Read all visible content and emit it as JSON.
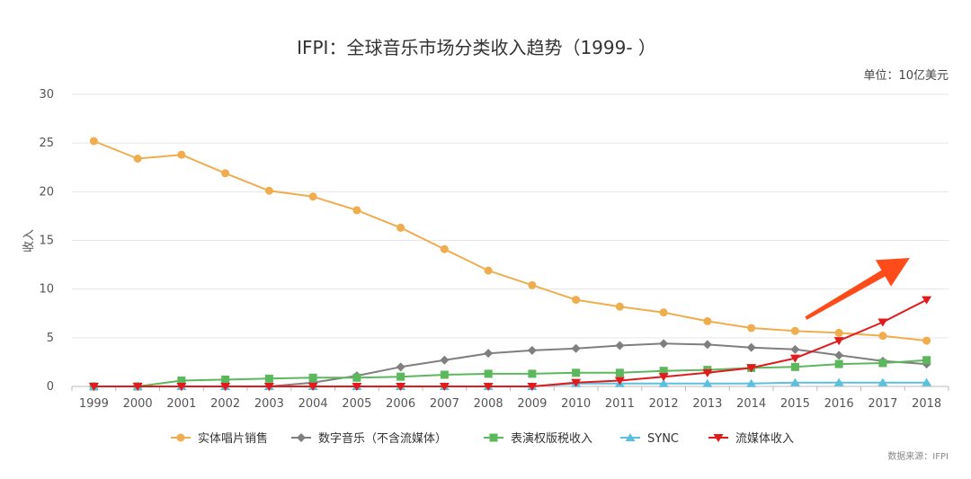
{
  "chart_data": {
    "type": "line",
    "title": "IFPI：全球音乐市场分类收入趋势（1999- ）",
    "unit_note": "单位：10亿美元",
    "source_note": "数据来源：IFPI",
    "ylabel": "收入",
    "xlabel": "",
    "ylim": [
      0,
      30
    ],
    "yticks": [
      0,
      5,
      10,
      15,
      20,
      25,
      30
    ],
    "grid": true,
    "legend_position": "bottom",
    "x": [
      "1999",
      "2000",
      "2001",
      "2002",
      "2003",
      "2004",
      "2005",
      "2006",
      "2007",
      "2008",
      "2009",
      "2010",
      "2011",
      "2012",
      "2013",
      "2014",
      "2015",
      "2016",
      "2017",
      "2018"
    ],
    "series": [
      {
        "name": "实体唱片销售",
        "color": "#f0ad4e",
        "marker": "circle",
        "values": [
          25.2,
          23.4,
          23.8,
          21.9,
          20.1,
          19.5,
          18.1,
          16.3,
          14.1,
          11.9,
          10.4,
          8.9,
          8.2,
          7.6,
          6.7,
          6.0,
          5.7,
          5.5,
          5.2,
          4.7
        ]
      },
      {
        "name": "数字音乐（不含流媒体）",
        "color": "#7f7f7f",
        "marker": "diamond",
        "values": [
          0.0,
          0.0,
          0.0,
          0.0,
          0.0,
          0.4,
          1.1,
          2.0,
          2.7,
          3.4,
          3.7,
          3.9,
          4.2,
          4.4,
          4.3,
          4.0,
          3.8,
          3.2,
          2.6,
          2.3
        ]
      },
      {
        "name": "表演权版税收入",
        "color": "#5cb85c",
        "marker": "square",
        "values": [
          0.0,
          0.0,
          0.6,
          0.7,
          0.8,
          0.9,
          0.9,
          1.0,
          1.2,
          1.3,
          1.3,
          1.4,
          1.4,
          1.6,
          1.7,
          1.9,
          2.0,
          2.3,
          2.4,
          2.7
        ]
      },
      {
        "name": "SYNC",
        "color": "#5bc0de",
        "marker": "triangle-up",
        "values": [
          0.0,
          0.0,
          0.0,
          0.0,
          0.0,
          0.0,
          0.0,
          0.0,
          0.0,
          0.0,
          0.0,
          0.3,
          0.3,
          0.3,
          0.3,
          0.3,
          0.4,
          0.4,
          0.4,
          0.4
        ]
      },
      {
        "name": "流媒体收入",
        "color": "#e31a1c",
        "marker": "triangle-down",
        "values": [
          0.0,
          0.0,
          0.0,
          0.0,
          0.0,
          0.0,
          0.0,
          0.0,
          0.0,
          0.0,
          0.0,
          0.4,
          0.6,
          1.0,
          1.4,
          1.9,
          2.9,
          4.7,
          6.6,
          8.9
        ]
      }
    ],
    "annotation": {
      "type": "arrow",
      "color": "#ff4a1a",
      "from": [
        "2015",
        7.0
      ],
      "to": [
        "2017",
        13.2
      ]
    }
  }
}
